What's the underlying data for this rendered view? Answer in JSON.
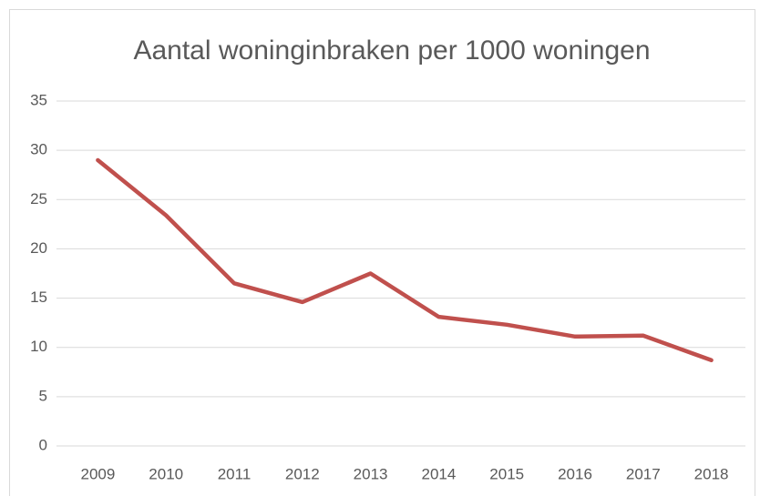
{
  "chart_data": {
    "type": "line",
    "title": "Aantal woninginbraken per 1000 woningen",
    "categories": [
      "2009",
      "2010",
      "2011",
      "2012",
      "2013",
      "2014",
      "2015",
      "2016",
      "2017",
      "2018"
    ],
    "values": [
      29.0,
      23.4,
      16.5,
      14.6,
      17.5,
      13.1,
      12.3,
      11.1,
      11.2,
      8.7
    ],
    "color": "#c0504d",
    "ylim": [
      0,
      35
    ],
    "yticks": [
      0,
      5,
      10,
      15,
      20,
      25,
      30,
      35
    ],
    "grid": true
  }
}
